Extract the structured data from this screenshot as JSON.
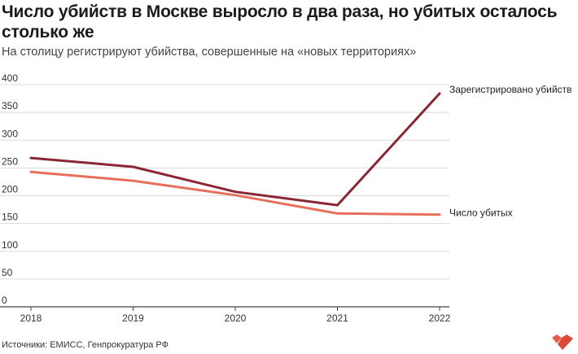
{
  "header": {
    "title": "Число убийств в Москве выросло в два раза, но убитых осталось столько же",
    "subtitle": "На столицу регистрируют убийства, совершенные на «новых территориях»"
  },
  "footer": {
    "source": "Источники: ЕМИСС, Генпрокуратура РФ"
  },
  "logo": {
    "icon": "hearts-logo-icon",
    "color": "#e8604c"
  },
  "chart_data": {
    "type": "line",
    "title": "",
    "xlabel": "",
    "ylabel": "",
    "x": [
      2018,
      2019,
      2020,
      2021,
      2022
    ],
    "xticks": [
      "2018",
      "2019",
      "2020",
      "2021",
      "2022"
    ],
    "ylim": [
      0,
      400
    ],
    "yticks": [
      "0",
      "50",
      "100",
      "150",
      "200",
      "250",
      "300",
      "350",
      "400"
    ],
    "grid": true,
    "legend": "direct labels at line ends",
    "series": [
      {
        "name": "Зарегистрировано убийств",
        "color": "#8b2635",
        "values": [
          268,
          252,
          207,
          183,
          384
        ]
      },
      {
        "name": "Число убитых",
        "color": "#e8705a",
        "values": [
          243,
          227,
          201,
          168,
          166
        ]
      }
    ]
  }
}
